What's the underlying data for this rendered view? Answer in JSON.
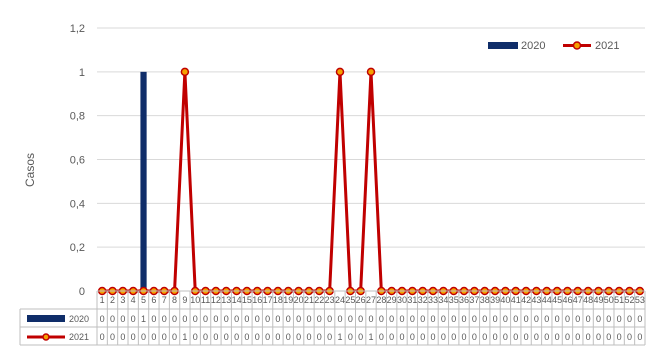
{
  "colors": {
    "series_2020": "#0f2d69",
    "series_2021": "#c00000",
    "marker_fill": "#f5a000",
    "grid": "#d9d9d9",
    "axis": "#bfbfbf",
    "text": "#595959"
  },
  "chart_data": {
    "type": "bar",
    "ylabel": "Casos",
    "ylim": [
      0,
      1.2
    ],
    "yticks": [
      "0",
      "0,2",
      "0,4",
      "0,6",
      "0,8",
      "1",
      "1,2"
    ],
    "categories": [
      "1",
      "2",
      "3",
      "4",
      "5",
      "6",
      "7",
      "8",
      "9",
      "10",
      "11",
      "12",
      "13",
      "14",
      "15",
      "16",
      "17",
      "18",
      "19",
      "20",
      "21",
      "22",
      "23",
      "24",
      "25",
      "26",
      "27",
      "28",
      "29",
      "30",
      "31",
      "32",
      "33",
      "34",
      "35",
      "36",
      "37",
      "38",
      "39",
      "40",
      "41",
      "42",
      "43",
      "44",
      "45",
      "46",
      "47",
      "48",
      "49",
      "50",
      "51",
      "52",
      "53"
    ],
    "series": [
      {
        "name": "2020",
        "type": "bar",
        "values": [
          0,
          0,
          0,
          0,
          1,
          0,
          0,
          0,
          0,
          0,
          0,
          0,
          0,
          0,
          0,
          0,
          0,
          0,
          0,
          0,
          0,
          0,
          0,
          0,
          0,
          0,
          0,
          0,
          0,
          0,
          0,
          0,
          0,
          0,
          0,
          0,
          0,
          0,
          0,
          0,
          0,
          0,
          0,
          0,
          0,
          0,
          0,
          0,
          0,
          0,
          0,
          0,
          0
        ]
      },
      {
        "name": "2021",
        "type": "line",
        "values": [
          0,
          0,
          0,
          0,
          0,
          0,
          0,
          0,
          1,
          0,
          0,
          0,
          0,
          0,
          0,
          0,
          0,
          0,
          0,
          0,
          0,
          0,
          0,
          1,
          0,
          0,
          1,
          0,
          0,
          0,
          0,
          0,
          0,
          0,
          0,
          0,
          0,
          0,
          0,
          0,
          0,
          0,
          0,
          0,
          0,
          0,
          0,
          0,
          0,
          0,
          0,
          0,
          0
        ]
      }
    ],
    "legend": "top-right",
    "grid": true,
    "data_table": true
  }
}
